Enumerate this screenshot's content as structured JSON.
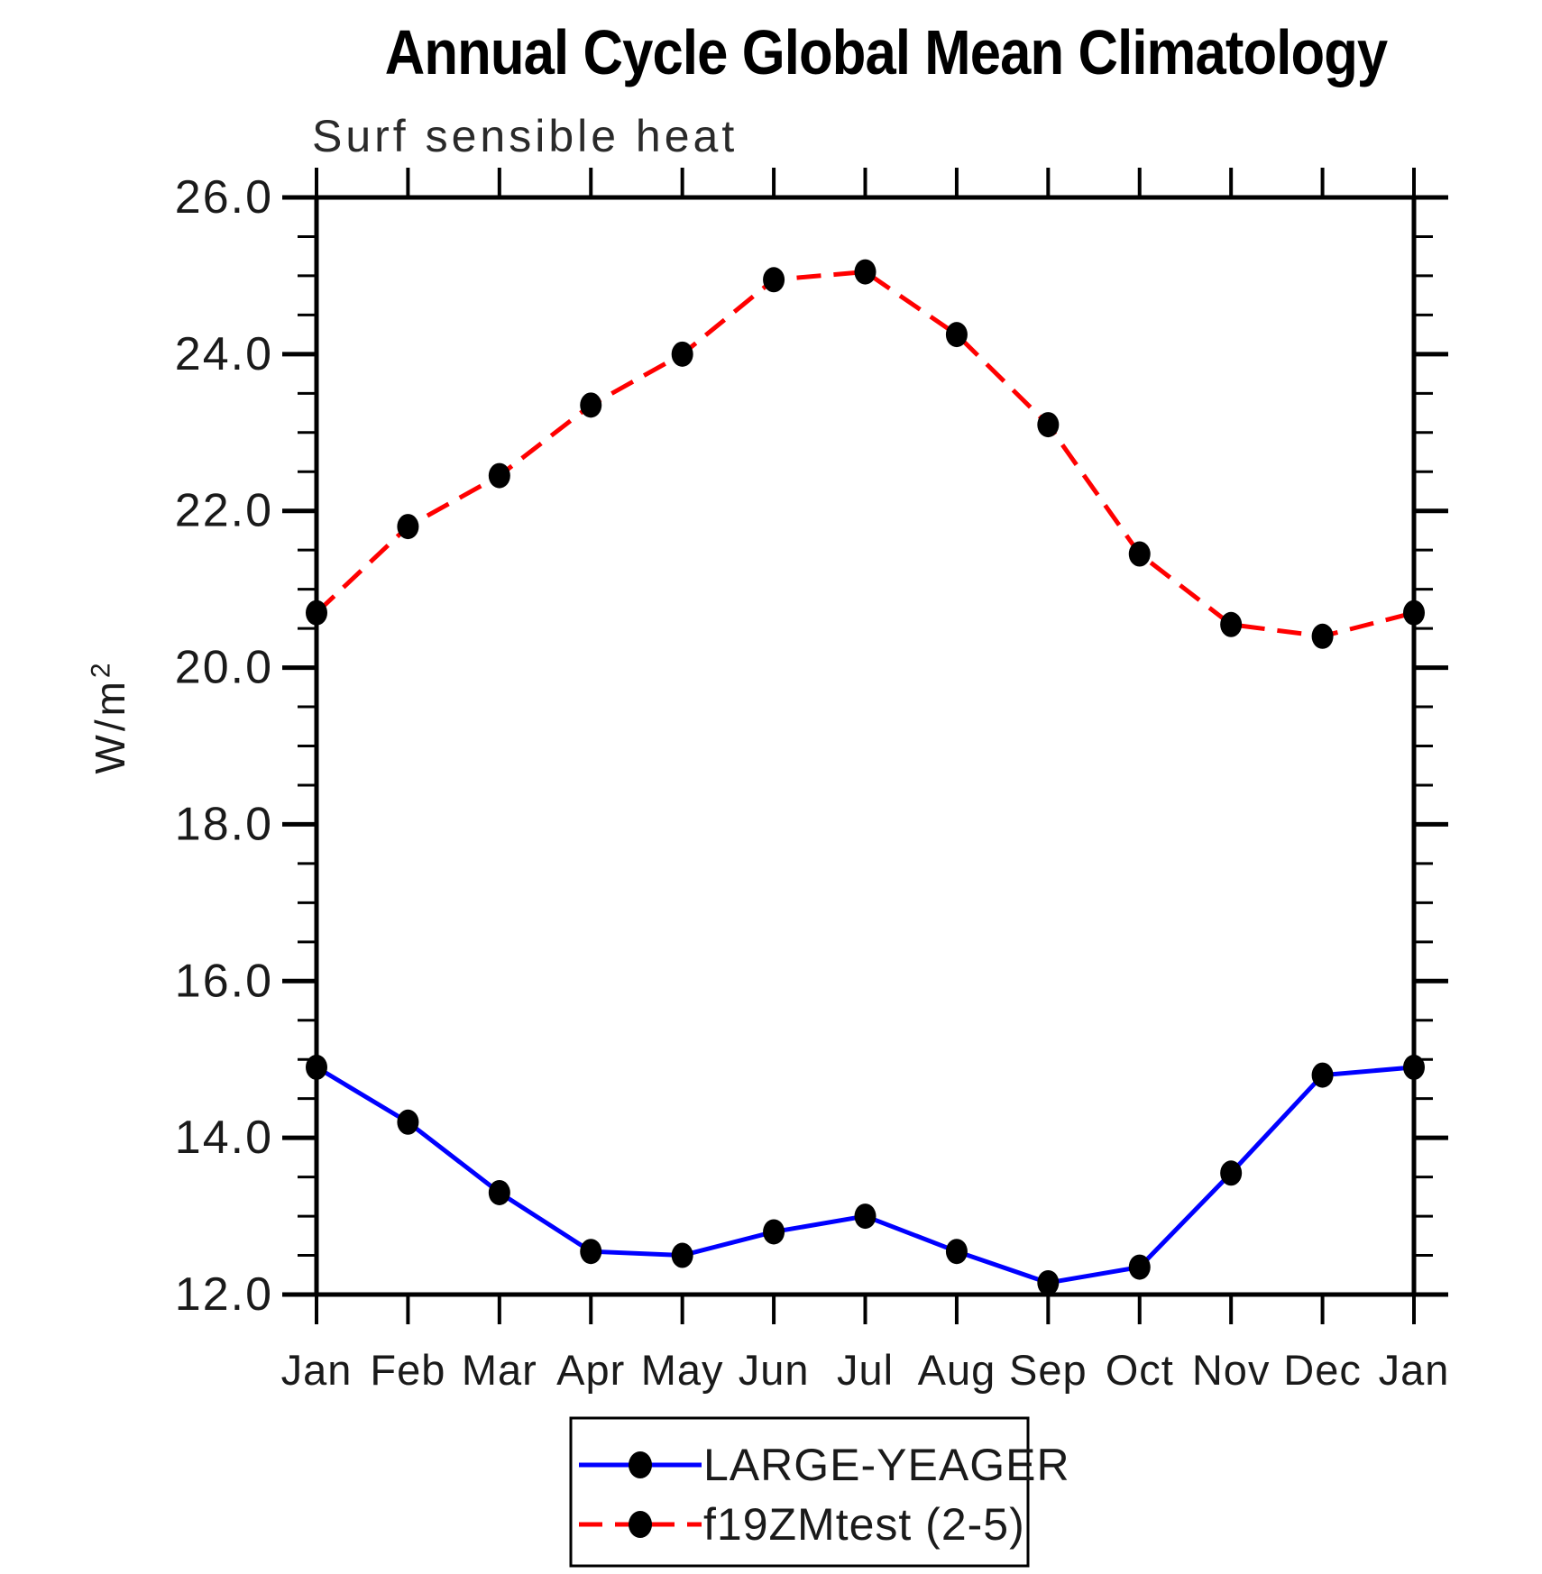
{
  "title": "Annual Cycle Global Mean Climatology",
  "subtitle": "Surf sensible heat",
  "y_axis": {
    "unit_base": "W/m",
    "unit_exponent": "2",
    "major_tick_labels": [
      "26.0",
      "24.0",
      "22.0",
      "20.0",
      "18.0",
      "16.0",
      "14.0",
      "12.0"
    ]
  },
  "chart_data": {
    "type": "line",
    "title": "Annual Cycle Global Mean Climatology",
    "subtitle": "Surf sensible heat",
    "ylabel": "W/m2",
    "x_labels": [
      "Jan",
      "Feb",
      "Mar",
      "Apr",
      "May",
      "Jun",
      "Jul",
      "Aug",
      "Sep",
      "Oct",
      "Nov",
      "Dec",
      "Jan"
    ],
    "ylim": [
      12.0,
      26.0
    ],
    "y_major_step": 2.0,
    "y_minor_step": 0.5,
    "grid": false,
    "legend_position": "bottom-center-boxed",
    "marker": "filled-circle",
    "marker_color": "#000000",
    "series": [
      {
        "name": "LARGE-YEAGER",
        "color": "#0000ff",
        "line_style": "solid",
        "values": [
          14.9,
          14.2,
          13.3,
          12.55,
          12.5,
          12.8,
          13.0,
          12.55,
          12.15,
          12.35,
          13.55,
          14.8,
          14.9
        ]
      },
      {
        "name": "f19ZMtest (2-5)",
        "color": "#ff0000",
        "line_style": "dashed",
        "values": [
          20.7,
          21.8,
          22.45,
          23.35,
          24.0,
          24.95,
          25.05,
          24.25,
          23.1,
          21.45,
          20.55,
          20.4,
          20.7
        ]
      }
    ]
  }
}
